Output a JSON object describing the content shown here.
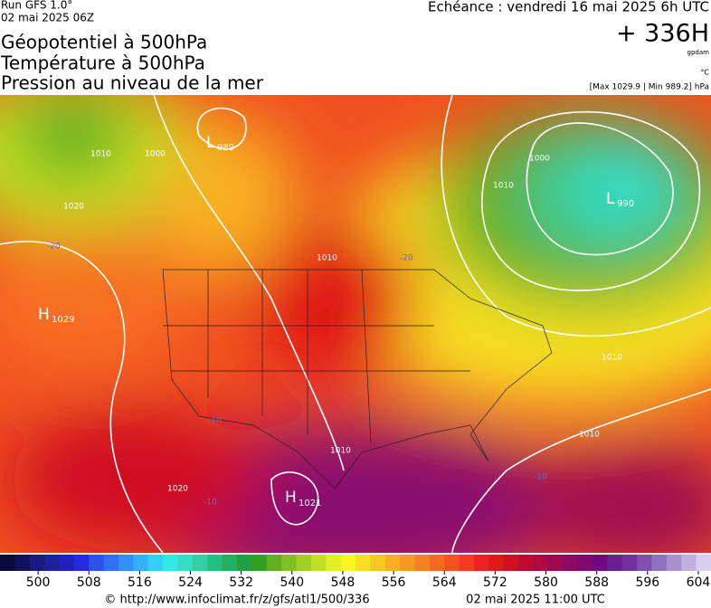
{
  "header": {
    "run": "Run GFS 1.0°",
    "run_date": "02 mai 2025 06Z",
    "titles": [
      "Géopotentiel à 500hPa",
      "Température à 500hPa",
      "Pression au niveau de la mer"
    ],
    "valid": "Echéance : vendredi 16 mai 2025 6h UTC",
    "lead": "+ 336H",
    "unit_geo": "gpdam",
    "unit_temp": "°C",
    "pressure_range": "[Max 1029.9 | Min 989.2] hPa"
  },
  "map": {
    "centers": [
      {
        "letter": "L",
        "value": "989"
      },
      {
        "letter": "L",
        "value": "990"
      },
      {
        "letter": "H",
        "value": "1029"
      },
      {
        "letter": "H",
        "value": "1021"
      }
    ],
    "isobar_labels": [
      "1010",
      "1000",
      "1020",
      "1010",
      "1010",
      "1000",
      "1010",
      "1010",
      "1020",
      "1010"
    ],
    "temp_labels": [
      "-20",
      "-20",
      "-10",
      "-10",
      "-10"
    ]
  },
  "colorbar": {
    "range": [
      494,
      606
    ],
    "ticks": [
      500,
      508,
      516,
      524,
      532,
      540,
      548,
      556,
      564,
      572,
      580,
      588,
      596,
      604
    ],
    "colors": [
      "#0a0a3c",
      "#101060",
      "#1a1a80",
      "#1e1ea0",
      "#2020c0",
      "#2828e0",
      "#2e50f0",
      "#3070f8",
      "#3090ff",
      "#30b0ff",
      "#30d0f8",
      "#30e8e8",
      "#30e0c0",
      "#30d0a0",
      "#20c080",
      "#20b060",
      "#20a040",
      "#30a020",
      "#60b020",
      "#80c020",
      "#a0d020",
      "#c0e020",
      "#e0f020",
      "#f8f820",
      "#f8e020",
      "#f8c820",
      "#f8b020",
      "#f89820",
      "#f88020",
      "#f86820",
      "#f85020",
      "#f83820",
      "#f02020",
      "#e01818",
      "#d01020",
      "#c00830",
      "#b00840",
      "#a00850",
      "#900860",
      "#800870",
      "#700880",
      "#682090",
      "#7030a0",
      "#8050b0",
      "#9070c0",
      "#a890d0",
      "#c0b0e0",
      "#d8d0f0"
    ]
  },
  "footer": {
    "url": "© http://www.infoclimat.fr/z/gfs/atl1/500/336",
    "updated": "02 mai 2025 11:00 UTC"
  }
}
